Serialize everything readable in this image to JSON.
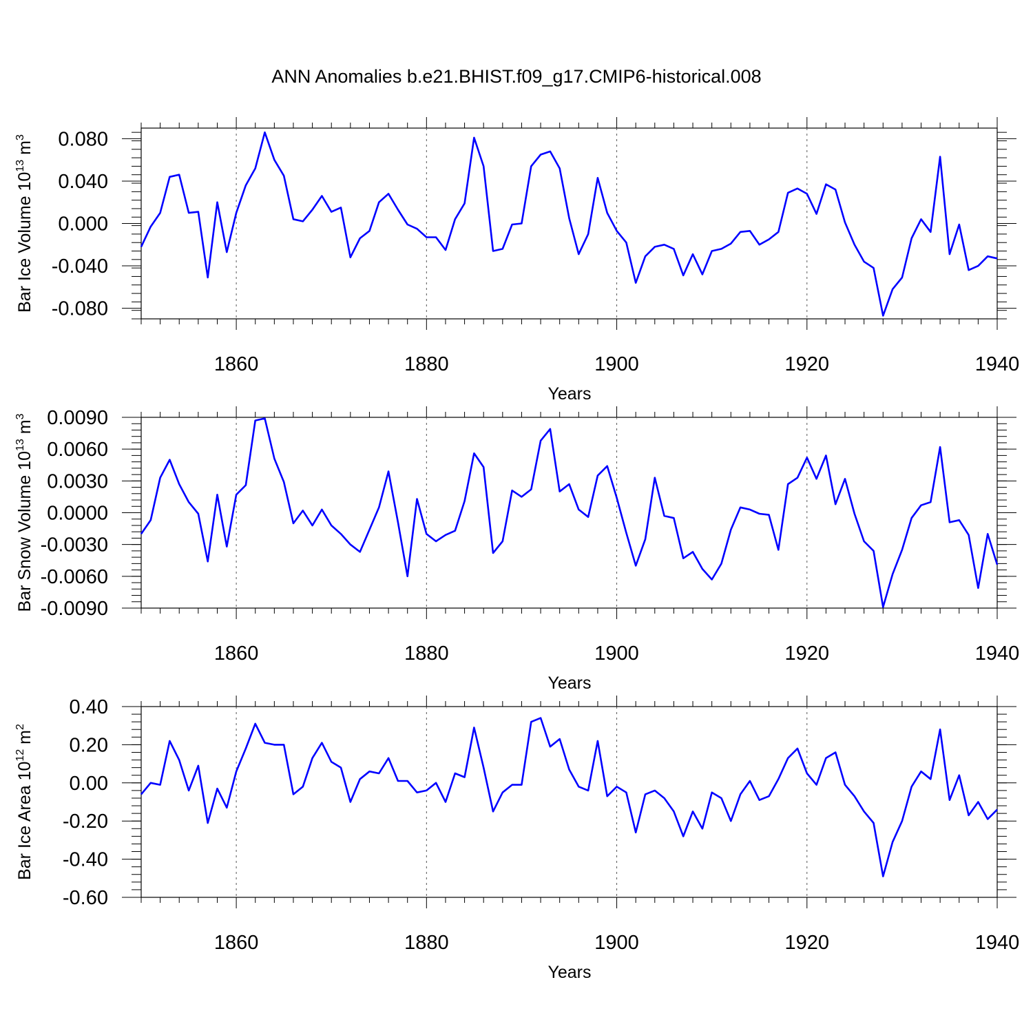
{
  "title": "ANN Anomalies b.e21.BHIST.f09_g17.CMIP6-historical.008",
  "chart_data": [
    {
      "type": "line",
      "ylabel": "Bar Ice Volume",
      "unit_base": "10",
      "unit_exp": "13",
      "unit_sym": "m",
      "unit_pow": "3",
      "xlabel": "Years",
      "xlim": [
        1850,
        1940
      ],
      "ylim": [
        -0.09,
        0.09
      ],
      "yticks": [
        -0.08,
        -0.04,
        0.0,
        0.04,
        0.08
      ],
      "ytick_labels": [
        "-0.080",
        "-0.040",
        "0.000",
        "0.040",
        "0.080"
      ],
      "xticks": [
        1860,
        1880,
        1900,
        1920,
        1940
      ],
      "xtick_labels": [
        "1860",
        "1880",
        "1900",
        "1920",
        "1940"
      ],
      "grid": "dashed vertical at major x ticks",
      "line_color": "#0000ff",
      "x_start": 1850,
      "values": [
        -0.022,
        -0.003,
        0.01,
        0.044,
        0.046,
        0.01,
        0.011,
        -0.051,
        0.02,
        -0.027,
        0.01,
        0.036,
        0.052,
        0.086,
        0.06,
        0.045,
        0.004,
        0.002,
        0.013,
        0.026,
        0.011,
        0.015,
        -0.032,
        -0.014,
        -0.007,
        0.02,
        0.028,
        0.013,
        -0.001,
        -0.005,
        -0.013,
        -0.013,
        -0.025,
        0.004,
        0.019,
        0.081,
        0.054,
        -0.026,
        -0.024,
        -0.001,
        0.0,
        0.054,
        0.065,
        0.068,
        0.052,
        0.005,
        -0.029,
        -0.01,
        0.043,
        0.01,
        -0.007,
        -0.018,
        -0.056,
        -0.031,
        -0.022,
        -0.02,
        -0.024,
        -0.049,
        -0.029,
        -0.048,
        -0.026,
        -0.024,
        -0.019,
        -0.008,
        -0.007,
        -0.02,
        -0.015,
        -0.008,
        0.029,
        0.033,
        0.028,
        0.009,
        0.037,
        0.032,
        0.001,
        -0.02,
        -0.036,
        -0.042,
        -0.087,
        -0.062,
        -0.051,
        -0.014,
        0.004,
        -0.008,
        0.063,
        -0.029,
        -0.001,
        -0.044,
        -0.04,
        -0.031,
        -0.033
      ]
    },
    {
      "type": "line",
      "ylabel": "Bar Snow Volume",
      "unit_base": "10",
      "unit_exp": "13",
      "unit_sym": "m",
      "unit_pow": "3",
      "xlabel": "Years",
      "xlim": [
        1850,
        1940
      ],
      "ylim": [
        -0.009,
        0.009
      ],
      "yticks": [
        -0.009,
        -0.006,
        -0.003,
        0.0,
        0.003,
        0.006,
        0.009
      ],
      "ytick_labels": [
        "-0.0090",
        "-0.0060",
        "-0.0030",
        "0.0000",
        "0.0030",
        "0.0060",
        "0.0090"
      ],
      "xticks": [
        1860,
        1880,
        1900,
        1920,
        1940
      ],
      "xtick_labels": [
        "1860",
        "1880",
        "1900",
        "1920",
        "1940"
      ],
      "grid": "dashed vertical at major x ticks",
      "line_color": "#0000ff",
      "x_start": 1850,
      "values": [
        -0.002,
        -0.0007,
        0.0033,
        0.005,
        0.0027,
        0.001,
        -0.0001,
        -0.0046,
        0.0017,
        -0.0032,
        0.0017,
        0.0026,
        0.0087,
        0.0089,
        0.0051,
        0.0029,
        -0.001,
        0.0002,
        -0.0012,
        0.0003,
        -0.0012,
        -0.002,
        -0.003,
        -0.0037,
        -0.0016,
        0.0005,
        0.0039,
        -0.0009,
        -0.006,
        0.0013,
        -0.002,
        -0.0027,
        -0.0021,
        -0.0017,
        0.0011,
        0.0056,
        0.0043,
        -0.0038,
        -0.0027,
        0.0021,
        0.0015,
        0.0022,
        0.0068,
        0.0079,
        0.002,
        0.0027,
        0.0003,
        -0.0004,
        0.0035,
        0.0044,
        0.0014,
        -0.0019,
        -0.005,
        -0.0025,
        0.0033,
        -0.0003,
        -0.0005,
        -0.0043,
        -0.0037,
        -0.0053,
        -0.0063,
        -0.0048,
        -0.0016,
        0.0005,
        0.0003,
        -0.0001,
        -0.0002,
        -0.0035,
        0.0027,
        0.0033,
        0.0052,
        0.0032,
        0.0054,
        0.0008,
        0.0032,
        -0.0001,
        -0.0027,
        -0.0036,
        -0.0089,
        -0.0058,
        -0.0035,
        -0.0005,
        0.0007,
        0.001,
        0.0062,
        -0.0009,
        -0.0007,
        -0.0021,
        -0.0071,
        -0.002,
        -0.0049
      ]
    },
    {
      "type": "line",
      "ylabel": "Bar Ice Area",
      "unit_base": "10",
      "unit_exp": "12",
      "unit_sym": "m",
      "unit_pow": "2",
      "xlabel": "Years",
      "xlim": [
        1850,
        1940
      ],
      "ylim": [
        -0.6,
        0.4
      ],
      "yticks": [
        -0.6,
        -0.4,
        -0.2,
        0.0,
        0.2,
        0.4
      ],
      "ytick_labels": [
        "-0.60",
        "-0.40",
        "-0.20",
        "0.00",
        "0.20",
        "0.40"
      ],
      "xticks": [
        1860,
        1880,
        1900,
        1920,
        1940
      ],
      "xtick_labels": [
        "1860",
        "1880",
        "1900",
        "1920",
        "1940"
      ],
      "grid": "dashed vertical at major x ticks",
      "line_color": "#0000ff",
      "x_start": 1850,
      "values": [
        -0.06,
        0.0,
        -0.01,
        0.22,
        0.12,
        -0.04,
        0.09,
        -0.21,
        -0.03,
        -0.13,
        0.06,
        0.18,
        0.31,
        0.21,
        0.2,
        0.2,
        -0.06,
        -0.02,
        0.13,
        0.21,
        0.11,
        0.08,
        -0.1,
        0.02,
        0.06,
        0.05,
        0.13,
        0.01,
        0.01,
        -0.05,
        -0.04,
        0.0,
        -0.1,
        0.05,
        0.03,
        0.29,
        0.08,
        -0.15,
        -0.05,
        -0.01,
        -0.01,
        0.32,
        0.34,
        0.19,
        0.23,
        0.07,
        -0.02,
        -0.04,
        0.22,
        -0.07,
        -0.02,
        -0.05,
        -0.26,
        -0.06,
        -0.04,
        -0.08,
        -0.15,
        -0.28,
        -0.15,
        -0.24,
        -0.05,
        -0.08,
        -0.2,
        -0.06,
        0.01,
        -0.09,
        -0.07,
        0.02,
        0.13,
        0.18,
        0.05,
        -0.01,
        0.13,
        0.16,
        -0.01,
        -0.07,
        -0.15,
        -0.21,
        -0.49,
        -0.31,
        -0.2,
        -0.02,
        0.06,
        0.02,
        0.28,
        -0.09,
        0.04,
        -0.17,
        -0.1,
        -0.19,
        -0.14
      ]
    }
  ]
}
